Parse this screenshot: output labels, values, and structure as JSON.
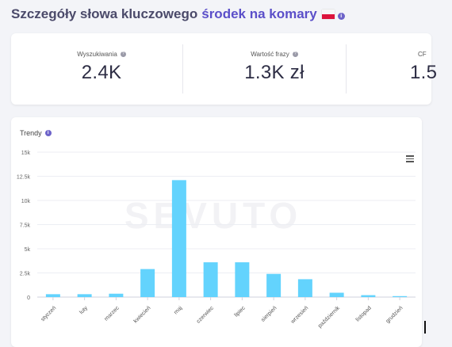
{
  "header": {
    "title": "Szczegóły słowa kluczowego",
    "keyword": "środek na komary",
    "info_symbol": "i"
  },
  "stats": [
    {
      "label": "Wyszukiwania",
      "value": "2.4K"
    },
    {
      "label": "Wartość frazy",
      "value": "1.3K zł"
    },
    {
      "label": "CF",
      "value": "1.5"
    }
  ],
  "trend_panel": {
    "title": "Trendy",
    "info_symbol": "i"
  },
  "chart_data": {
    "type": "bar",
    "title": "",
    "xlabel": "",
    "ylabel": "",
    "categories": [
      "styczeń",
      "luty",
      "marzec",
      "kwiecień",
      "maj",
      "czerwiec",
      "lipiec",
      "sierpień",
      "wrzesień",
      "październik",
      "listopad",
      "grudzień"
    ],
    "values": [
      300,
      300,
      350,
      2900,
      12100,
      3600,
      3600,
      2400,
      1850,
      450,
      200,
      100
    ],
    "ylim": [
      0,
      15000
    ],
    "ytick_labels": [
      "0",
      "2.5k",
      "5k",
      "7.5k",
      "10k",
      "12.5k",
      "15k"
    ],
    "bar_color": "#63d3fd",
    "grid": true,
    "watermark": "SEVUTO"
  },
  "colors": {
    "accent": "#5b4fc9",
    "bar": "#63d3fd"
  }
}
